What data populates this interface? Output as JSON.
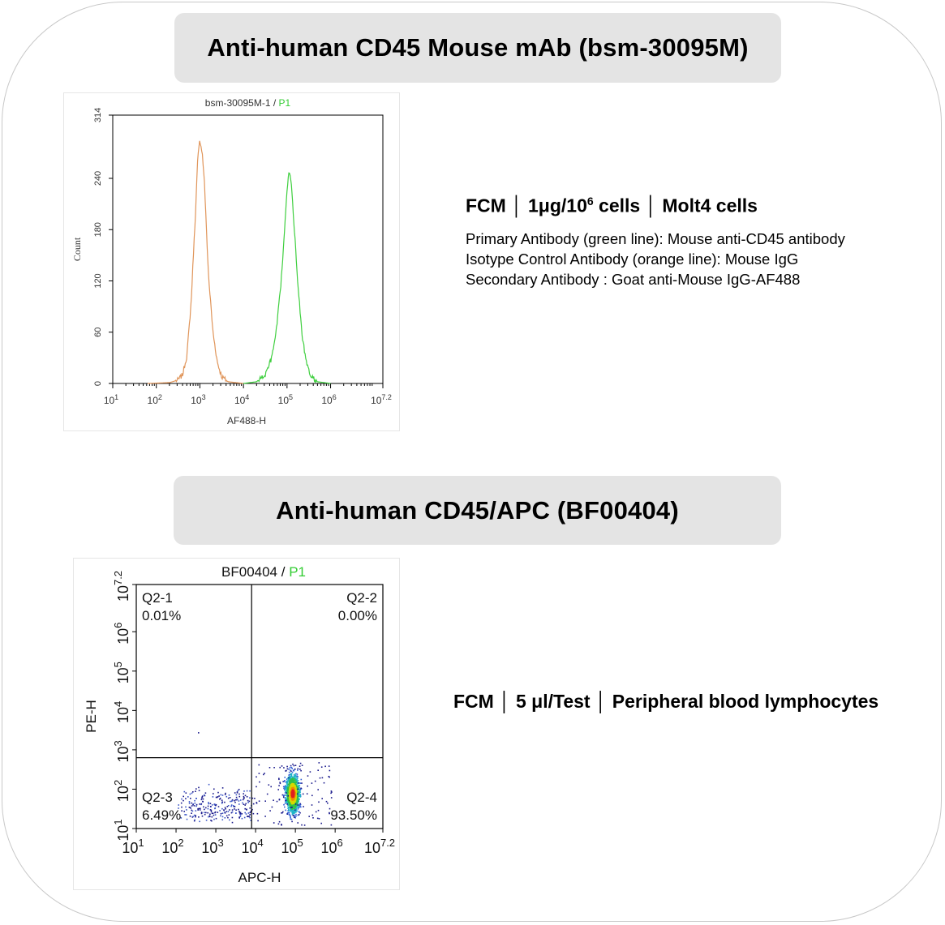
{
  "banners": {
    "top": "Anti-human CD45 Mouse mAb (bsm-30095M)",
    "bottom": "Anti-human CD45/APC (BF00404)"
  },
  "descriptions": {
    "top": {
      "title_prefix": "FCM │ 1μg/10",
      "title_sup": "6",
      "title_suffix": " cells │ Molt4 cells",
      "lines": [
        "Primary Antibody (green line): Mouse anti-CD45 antibody",
        "Isotype Control Antibody (orange line): Mouse IgG",
        "Secondary Antibody : Goat anti-Mouse IgG-AF488"
      ]
    },
    "bottom": {
      "title": "FCM │ 5 μl/Test │ Peripheral blood lymphocytes"
    }
  },
  "colors": {
    "isotype": "#e0955a",
    "primary": "#3fcf3f",
    "gate": "#33cc33",
    "gridline": "#000000"
  },
  "chart_data": [
    {
      "type": "line",
      "title": "bsm-30095M-1 / P1",
      "title_parts": [
        "bsm-30095M-1 / ",
        "P1"
      ],
      "xlabel": "AF488-H",
      "ylabel": "Count",
      "x_scale": "log",
      "xlim": [
        1,
        7.2
      ],
      "ylim": [
        0,
        314
      ],
      "x_ticks": [
        "1",
        "2",
        "3",
        "4",
        "5",
        "6",
        "7.2"
      ],
      "y_ticks": [
        "0",
        "60",
        "120",
        "180",
        "240",
        "314"
      ],
      "series": [
        {
          "name": "Isotype Control Antibody (orange line)",
          "color": "#e0955a",
          "peak_log10": 3.0,
          "peak_count": 285,
          "points": [
            [
              1.8,
              0
            ],
            [
              2.3,
              1
            ],
            [
              2.5,
              4
            ],
            [
              2.6,
              10
            ],
            [
              2.7,
              32
            ],
            [
              2.8,
              95
            ],
            [
              2.85,
              150
            ],
            [
              2.9,
              200
            ],
            [
              2.95,
              262
            ],
            [
              3.0,
              285
            ],
            [
              3.05,
              272
            ],
            [
              3.1,
              240
            ],
            [
              3.15,
              180
            ],
            [
              3.2,
              125
            ],
            [
              3.3,
              60
            ],
            [
              3.4,
              25
            ],
            [
              3.5,
              8
            ],
            [
              3.65,
              2
            ],
            [
              4.0,
              0
            ]
          ]
        },
        {
          "name": "Primary Antibody (green line)",
          "color": "#3fcf3f",
          "peak_log10": 5.05,
          "peak_count": 250,
          "points": [
            [
              4.0,
              0
            ],
            [
              4.3,
              2
            ],
            [
              4.5,
              10
            ],
            [
              4.65,
              30
            ],
            [
              4.75,
              60
            ],
            [
              4.85,
              110
            ],
            [
              4.92,
              160
            ],
            [
              5.0,
              225
            ],
            [
              5.05,
              250
            ],
            [
              5.1,
              235
            ],
            [
              5.15,
              195
            ],
            [
              5.25,
              115
            ],
            [
              5.35,
              55
            ],
            [
              5.45,
              22
            ],
            [
              5.55,
              8
            ],
            [
              5.7,
              2
            ],
            [
              6.0,
              0
            ]
          ]
        }
      ]
    },
    {
      "type": "scatter",
      "title": "BF00404 / P1",
      "title_parts": [
        "BF00404 / ",
        "P1"
      ],
      "xlabel": "APC-H",
      "ylabel": "PE-H",
      "x_scale": "log",
      "y_scale": "log",
      "xlim": [
        1,
        7.2
      ],
      "ylim": [
        1,
        7.2
      ],
      "x_ticks": [
        "1",
        "2",
        "3",
        "4",
        "5",
        "6",
        "7.2"
      ],
      "y_ticks": [
        "1",
        "2",
        "3",
        "4",
        "5",
        "6",
        "7.2"
      ],
      "gate_x_log10": 3.9,
      "gate_y_log10": 2.8,
      "quadrants": [
        {
          "name": "Q2-1",
          "value": "0.01%",
          "position": "top-left"
        },
        {
          "name": "Q2-2",
          "value": "0.00%",
          "position": "top-right"
        },
        {
          "name": "Q2-3",
          "value": "6.49%",
          "position": "bottom-left"
        },
        {
          "name": "Q2-4",
          "value": "93.50%",
          "position": "bottom-right"
        }
      ]
    }
  ]
}
